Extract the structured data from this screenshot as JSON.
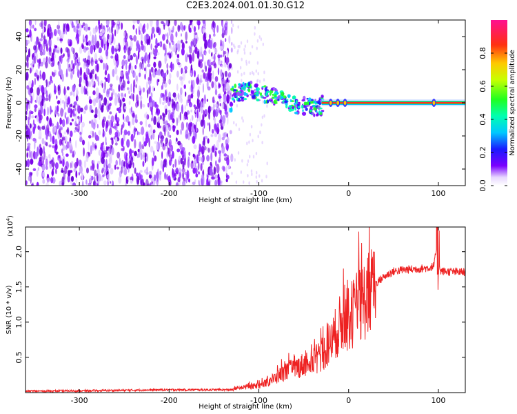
{
  "title": "C2E3.2024.001.01.30.G12",
  "chart_data": [
    {
      "type": "heatmap",
      "title": "C2E3.2024.001.01.30.G12",
      "xlabel": "Height of straight line (km)",
      "ylabel": "Frequency (Hz)",
      "xlim": [
        -360,
        130
      ],
      "ylim": [
        -50,
        50
      ],
      "x_ticks": [
        -300,
        -200,
        -100,
        0,
        100
      ],
      "y_ticks": [
        -40,
        -20,
        0,
        20,
        40
      ],
      "colorbar": {
        "label": "Normalized spectral amplitude",
        "range": [
          0.0,
          1.0
        ],
        "ticks": [
          0.0,
          0.2,
          0.4,
          0.6,
          0.8
        ],
        "tick_labels": [
          "0.0",
          "0.2",
          "0.4",
          "0.6",
          "0.8"
        ]
      },
      "regions": [
        {
          "x_range": [
            -360,
            -130
          ],
          "description_free": true,
          "amplitude": 0.15,
          "freq_range": [
            -50,
            50
          ]
        },
        {
          "x_range": [
            -130,
            -30
          ],
          "amplitude": 0.4,
          "freq_center": [
            [
              -130,
              5
            ],
            [
              -110,
              8
            ],
            [
              -100,
              6
            ],
            [
              -80,
              3
            ],
            [
              -60,
              -1
            ],
            [
              -40,
              -3
            ],
            [
              -30,
              -2
            ]
          ]
        },
        {
          "x_range": [
            -30,
            130
          ],
          "amplitude": 0.95,
          "freq_center": 0
        }
      ],
      "colors": {
        "weak": "#7a00e8",
        "line": "#ff2a2a"
      }
    },
    {
      "type": "line",
      "xlabel": "Height of straight line (km)",
      "ylabel": "SNR (10 * v/v)",
      "scale_label": "(x10",
      "scale_exponent": "4",
      "xlim": [
        -360,
        130
      ],
      "ylim": [
        0,
        23500
      ],
      "x_ticks": [
        -300,
        -200,
        -100,
        0,
        100
      ],
      "y_ticks": [
        5000,
        10000,
        15000,
        20000
      ],
      "y_tick_labels": [
        "0.5",
        "1.0",
        "1.5",
        "2.0"
      ],
      "series": [
        {
          "color": "#ee2222",
          "x": [
            -360,
            -300,
            -200,
            -130,
            -120,
            -100,
            -90,
            -80,
            -70,
            -60,
            -50,
            -40,
            -30,
            -20,
            -10,
            0,
            10,
            20,
            30,
            40,
            50,
            60,
            70,
            80,
            90,
            95,
            98,
            100,
            102,
            105,
            110,
            120,
            130
          ],
          "y": [
            200,
            250,
            400,
            400,
            700,
            1000,
            1500,
            2200,
            3000,
            3400,
            4000,
            4600,
            5300,
            7000,
            9500,
            10500,
            12000,
            13500,
            15500,
            16500,
            17200,
            17400,
            17500,
            17600,
            17700,
            18000,
            20500,
            18500,
            17300,
            17200,
            17200,
            17100,
            17100
          ]
        }
      ]
    }
  ]
}
